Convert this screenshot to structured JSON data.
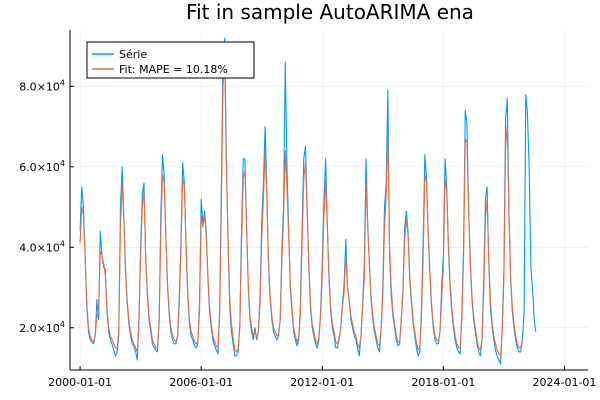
{
  "chart_data": {
    "type": "line",
    "title": "Fit in sample AutoARIMA ena",
    "xlabel": "",
    "ylabel": "",
    "x_ticks": [
      "2000-01-01",
      "2006-01-01",
      "2012-01-01",
      "2018-01-01",
      "2024-01-01"
    ],
    "y_ticks": [
      {
        "value": 20000,
        "mantissa": "2.0",
        "exp": "4"
      },
      {
        "value": 40000,
        "mantissa": "4.0",
        "exp": "4"
      },
      {
        "value": 60000,
        "mantissa": "6.0",
        "exp": "4"
      },
      {
        "value": 80000,
        "mantissa": "8.0",
        "exp": "4"
      }
    ],
    "y_tick_base": "×10",
    "xlim": [
      "1999-07-01",
      "2025-03-01"
    ],
    "ylim": [
      9500,
      94000
    ],
    "grid": true,
    "legend_position": "top-left",
    "start_month": "2000-01",
    "series": [
      {
        "name": "Série",
        "color": "#009af9",
        "values": [
          44000,
          55000,
          50000,
          38000,
          25000,
          19000,
          17000,
          16500,
          16000,
          18000,
          27000,
          22000,
          44000,
          38000,
          35000,
          34500,
          24000,
          19000,
          17000,
          16000,
          14500,
          13000,
          14000,
          18000,
          50000,
          60000,
          48000,
          34000,
          26000,
          21000,
          18000,
          16000,
          15500,
          14000,
          12000,
          22000,
          40000,
          53000,
          56000,
          37000,
          28000,
          22000,
          19000,
          16000,
          15000,
          14500,
          14000,
          22000,
          48000,
          63000,
          58000,
          43000,
          30000,
          23000,
          19000,
          17000,
          16000,
          16000,
          18000,
          28000,
          42000,
          61000,
          56000,
          40000,
          28000,
          21000,
          18000,
          17000,
          15500,
          15000,
          16000,
          26000,
          52000,
          46000,
          49000,
          44000,
          32000,
          24000,
          20000,
          17000,
          15500,
          14500,
          13500,
          25000,
          55000,
          88000,
          92000,
          62000,
          40000,
          25000,
          19000,
          16000,
          13000,
          13000,
          14000,
          21000,
          45000,
          62000,
          62000,
          45000,
          30000,
          22000,
          19000,
          17000,
          20000,
          17000,
          19000,
          28000,
          46000,
          56000,
          70000,
          55000,
          36000,
          27000,
          22000,
          19000,
          18000,
          17000,
          18000,
          22000,
          40000,
          50000,
          86000,
          60000,
          45000,
          30000,
          24000,
          19000,
          17000,
          15500,
          17000,
          26000,
          45000,
          62000,
          65000,
          50000,
          35000,
          25000,
          20000,
          18000,
          16000,
          15000,
          17000,
          24000,
          36000,
          52000,
          62000,
          46000,
          32000,
          24000,
          20000,
          18000,
          15000,
          15000,
          17000,
          20000,
          26000,
          31000,
          42000,
          30000,
          27000,
          22000,
          20000,
          18000,
          17000,
          15000,
          13000,
          18000,
          26000,
          36000,
          62000,
          46000,
          36000,
          27000,
          22000,
          19000,
          17000,
          15000,
          14000,
          20000,
          30000,
          50000,
          56000,
          79000,
          38000,
          28000,
          23000,
          20000,
          17000,
          15500,
          16000,
          22000,
          30000,
          45000,
          49000,
          44000,
          32000,
          26000,
          21000,
          18000,
          15000,
          13000,
          14000,
          25000,
          42000,
          63000,
          57000,
          43000,
          33000,
          25000,
          20000,
          17000,
          16000,
          16000,
          19000,
          30000,
          38000,
          62000,
          55000,
          40000,
          30000,
          24000,
          20000,
          17000,
          15000,
          14000,
          13500,
          24000,
          40000,
          74000,
          71000,
          50000,
          36000,
          27000,
          22000,
          19000,
          16000,
          14000,
          13000,
          17000,
          32000,
          52000,
          55000,
          36000,
          25000,
          20000,
          17000,
          14500,
          13000,
          12000,
          11000,
          20000,
          35000,
          72000,
          77000,
          49000,
          32000,
          24000,
          20000,
          17000,
          15000,
          14000,
          14000,
          17000,
          24000,
          78000,
          73000,
          60000,
          35000,
          30000,
          22000,
          19000
        ]
      },
      {
        "name": "Fit: MAPE = 10.18%",
        "color": "#e26f46",
        "values": [
          41000,
          50000,
          48000,
          37000,
          26000,
          20000,
          18000,
          17000,
          16500,
          18000,
          23000,
          24000,
          39000,
          38000,
          36000,
          33000,
          25000,
          20000,
          18000,
          17000,
          16000,
          15000,
          15000,
          19000,
          45000,
          56000,
          47000,
          35000,
          27000,
          22000,
          19000,
          17000,
          16000,
          15000,
          14000,
          21000,
          38000,
          50000,
          54000,
          38000,
          29000,
          23000,
          20000,
          17000,
          16000,
          15000,
          15000,
          21000,
          44000,
          58000,
          56000,
          43000,
          31000,
          24000,
          20000,
          18000,
          17000,
          16500,
          18000,
          26000,
          40000,
          57000,
          55000,
          41000,
          29000,
          22000,
          19000,
          18000,
          16500,
          16000,
          16500,
          24000,
          48000,
          45000,
          48000,
          43000,
          33000,
          25000,
          21000,
          18000,
          16500,
          15500,
          15000,
          23000,
          50000,
          80000,
          86000,
          60000,
          42000,
          27000,
          21000,
          17500,
          14500,
          14000,
          15000,
          20000,
          41000,
          57000,
          59000,
          45000,
          31000,
          23000,
          20000,
          18000,
          19000,
          17500,
          19000,
          26000,
          42000,
          52000,
          64000,
          53000,
          37000,
          28000,
          23000,
          20000,
          19000,
          18000,
          18500,
          22000,
          37000,
          47000,
          64000,
          55000,
          43000,
          31000,
          25000,
          20000,
          18000,
          16500,
          17500,
          24000,
          41000,
          57000,
          61000,
          49000,
          36000,
          26000,
          21000,
          19000,
          17000,
          16000,
          17500,
          23000,
          33000,
          48000,
          57000,
          45000,
          33000,
          25000,
          21000,
          19000,
          16500,
          16000,
          17500,
          20000,
          25000,
          29000,
          38000,
          30000,
          27000,
          23000,
          21000,
          19000,
          18000,
          16000,
          15000,
          18000,
          25000,
          33000,
          56000,
          45000,
          36000,
          28000,
          23000,
          20000,
          18000,
          16000,
          15500,
          20000,
          28000,
          45000,
          53000,
          68000,
          40000,
          30000,
          24000,
          21000,
          18000,
          16500,
          16500,
          22000,
          29000,
          42000,
          47000,
          43000,
          33000,
          27000,
          22000,
          19000,
          16500,
          14500,
          15000,
          23000,
          38000,
          58000,
          56000,
          44000,
          34000,
          26000,
          21000,
          18000,
          17000,
          16500,
          19000,
          27000,
          35000,
          57000,
          54000,
          41000,
          31000,
          25000,
          21000,
          18000,
          16000,
          15000,
          15000,
          22000,
          37000,
          67000,
          66000,
          50000,
          37000,
          28000,
          23000,
          20000,
          17000,
          15000,
          14500,
          17000,
          29000,
          47000,
          52000,
          37000,
          27000,
          21000,
          18000,
          16000,
          14500,
          13500,
          13000,
          19000,
          32000,
          65000,
          70000,
          48000,
          33000,
          25000,
          21000,
          18000,
          16000,
          15000,
          15000,
          17000
        ]
      }
    ]
  }
}
